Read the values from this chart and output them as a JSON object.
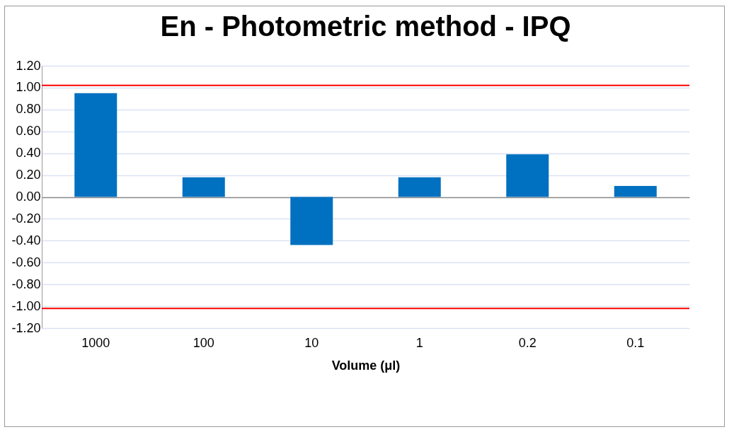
{
  "chart_data": {
    "type": "bar",
    "title": "En  - Photometric method - IPQ",
    "xlabel": "Volume (μl)",
    "categories": [
      "1000",
      "100",
      "10",
      "1",
      "0.2",
      "0.1"
    ],
    "values": [
      0.95,
      0.18,
      -0.44,
      0.18,
      0.39,
      0.1
    ],
    "color": "#0070c0",
    "ylim": [
      -1.2,
      1.2
    ],
    "yticks": [
      {
        "value": -1.2,
        "label": "-1.20"
      },
      {
        "value": -1,
        "label": "-1.00"
      },
      {
        "value": -0.8,
        "label": "-0.80"
      },
      {
        "value": -0.6,
        "label": "-0.60"
      },
      {
        "value": -0.4,
        "label": "-0.40"
      },
      {
        "value": -0.2,
        "label": "-0.20"
      },
      {
        "value": 0,
        "label": "0.00"
      },
      {
        "value": 0.2,
        "label": "0.20"
      },
      {
        "value": 0.4,
        "label": "0.40"
      },
      {
        "value": 0.6,
        "label": "0.60"
      },
      {
        "value": 0.8,
        "label": "0.80"
      },
      {
        "value": 1,
        "label": "1.00"
      },
      {
        "value": 1.2,
        "label": "1.20"
      }
    ],
    "grid": "y",
    "ref_lines": [
      {
        "axis": "y",
        "value": 1.02,
        "color": "#ff0000"
      },
      {
        "axis": "y",
        "value": -1.02,
        "color": "#ff0000"
      }
    ]
  }
}
